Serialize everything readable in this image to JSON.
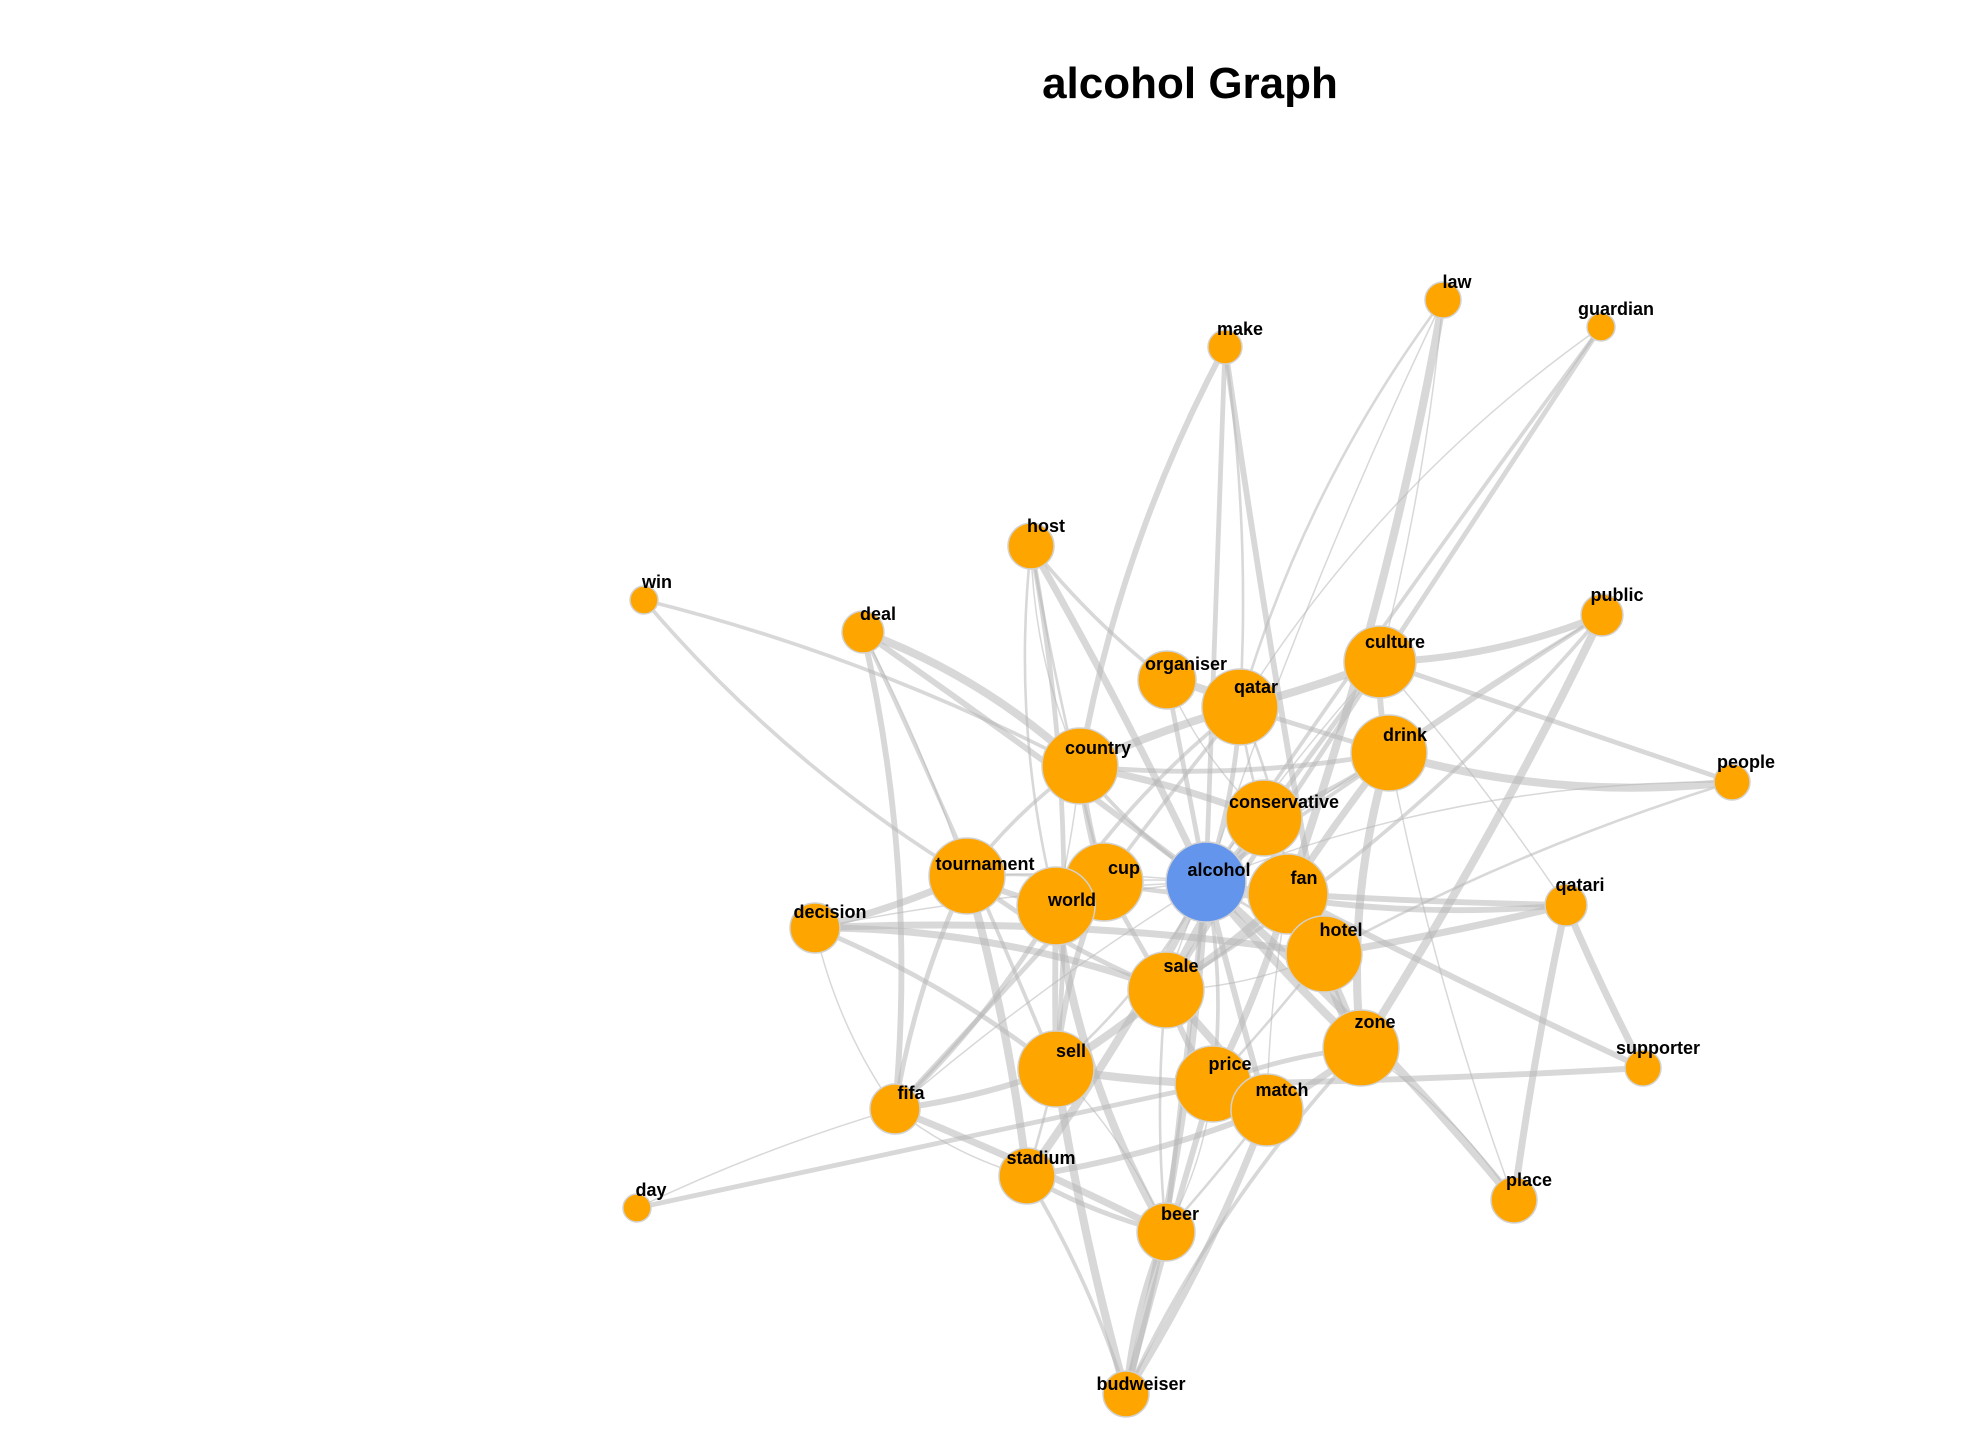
{
  "title": "alcohol Graph",
  "colors": {
    "background": "#ffffff",
    "center_node": "#6495ED",
    "node": "#FFA500",
    "node_stroke": "#D2D2D2",
    "edge": "#B8B8B8",
    "label": "#000000"
  },
  "graph": {
    "center": "alcohol",
    "nodes": [
      {
        "id": "alcohol",
        "label": "alcohol"
      },
      {
        "id": "cup",
        "label": "cup"
      },
      {
        "id": "world",
        "label": "world"
      },
      {
        "id": "tournament",
        "label": "tournament"
      },
      {
        "id": "country",
        "label": "country"
      },
      {
        "id": "organiser",
        "label": "organiser"
      },
      {
        "id": "qatar",
        "label": "qatar"
      },
      {
        "id": "culture",
        "label": "culture"
      },
      {
        "id": "drink",
        "label": "drink"
      },
      {
        "id": "conservative",
        "label": "conservative"
      },
      {
        "id": "fan",
        "label": "fan"
      },
      {
        "id": "hotel",
        "label": "hotel"
      },
      {
        "id": "sale",
        "label": "sale"
      },
      {
        "id": "zone",
        "label": "zone"
      },
      {
        "id": "sell",
        "label": "sell"
      },
      {
        "id": "price",
        "label": "price"
      },
      {
        "id": "match",
        "label": "match"
      },
      {
        "id": "stadium",
        "label": "stadium"
      },
      {
        "id": "beer",
        "label": "beer"
      },
      {
        "id": "fifa",
        "label": "fifa"
      },
      {
        "id": "decision",
        "label": "decision"
      },
      {
        "id": "deal",
        "label": "deal"
      },
      {
        "id": "host",
        "label": "host"
      },
      {
        "id": "win",
        "label": "win"
      },
      {
        "id": "make",
        "label": "make"
      },
      {
        "id": "law",
        "label": "law"
      },
      {
        "id": "guardian",
        "label": "guardian"
      },
      {
        "id": "public",
        "label": "public"
      },
      {
        "id": "people",
        "label": "people"
      },
      {
        "id": "qatari",
        "label": "qatari"
      },
      {
        "id": "supporter",
        "label": "supporter"
      },
      {
        "id": "place",
        "label": "place"
      },
      {
        "id": "day",
        "label": "day"
      },
      {
        "id": "budweiser",
        "label": "budweiser"
      }
    ],
    "edges": [
      [
        "alcohol",
        "cup"
      ],
      [
        "alcohol",
        "world"
      ],
      [
        "alcohol",
        "tournament"
      ],
      [
        "alcohol",
        "country"
      ],
      [
        "alcohol",
        "organiser"
      ],
      [
        "alcohol",
        "qatar"
      ],
      [
        "alcohol",
        "culture"
      ],
      [
        "alcohol",
        "drink"
      ],
      [
        "alcohol",
        "conservative"
      ],
      [
        "alcohol",
        "fan"
      ],
      [
        "alcohol",
        "hotel"
      ],
      [
        "alcohol",
        "sale"
      ],
      [
        "alcohol",
        "zone"
      ],
      [
        "alcohol",
        "sell"
      ],
      [
        "alcohol",
        "price"
      ],
      [
        "alcohol",
        "match"
      ],
      [
        "alcohol",
        "stadium"
      ],
      [
        "alcohol",
        "beer"
      ],
      [
        "alcohol",
        "fifa"
      ],
      [
        "alcohol",
        "decision"
      ],
      [
        "alcohol",
        "deal"
      ],
      [
        "alcohol",
        "host"
      ],
      [
        "alcohol",
        "make"
      ],
      [
        "alcohol",
        "law"
      ],
      [
        "alcohol",
        "guardian"
      ],
      [
        "alcohol",
        "public"
      ],
      [
        "alcohol",
        "people"
      ],
      [
        "alcohol",
        "qatari"
      ],
      [
        "alcohol",
        "place"
      ],
      [
        "alcohol",
        "budweiser"
      ],
      [
        "cup",
        "world"
      ],
      [
        "cup",
        "tournament"
      ],
      [
        "cup",
        "country"
      ],
      [
        "cup",
        "qatar"
      ],
      [
        "cup",
        "fan"
      ],
      [
        "cup",
        "sale"
      ],
      [
        "cup",
        "sell"
      ],
      [
        "cup",
        "fifa"
      ],
      [
        "cup",
        "host"
      ],
      [
        "world",
        "tournament"
      ],
      [
        "world",
        "country"
      ],
      [
        "world",
        "fifa"
      ],
      [
        "world",
        "sell"
      ],
      [
        "world",
        "qatar"
      ],
      [
        "world",
        "host"
      ],
      [
        "world",
        "beer"
      ],
      [
        "tournament",
        "win"
      ],
      [
        "tournament",
        "decision"
      ],
      [
        "tournament",
        "country"
      ],
      [
        "tournament",
        "fifa"
      ],
      [
        "tournament",
        "stadium"
      ],
      [
        "tournament",
        "sale"
      ],
      [
        "tournament",
        "deal"
      ],
      [
        "country",
        "host"
      ],
      [
        "country",
        "conservative"
      ],
      [
        "country",
        "qatar"
      ],
      [
        "country",
        "win"
      ],
      [
        "country",
        "drink"
      ],
      [
        "country",
        "deal"
      ],
      [
        "qatar",
        "organiser"
      ],
      [
        "qatar",
        "law"
      ],
      [
        "qatar",
        "guardian"
      ],
      [
        "qatar",
        "culture"
      ],
      [
        "qatar",
        "drink"
      ],
      [
        "qatar",
        "conservative"
      ],
      [
        "qatar",
        "fan"
      ],
      [
        "qatar",
        "make"
      ],
      [
        "culture",
        "drink"
      ],
      [
        "culture",
        "law"
      ],
      [
        "culture",
        "people"
      ],
      [
        "culture",
        "public"
      ],
      [
        "culture",
        "conservative"
      ],
      [
        "culture",
        "qatari"
      ],
      [
        "drink",
        "people"
      ],
      [
        "drink",
        "public"
      ],
      [
        "drink",
        "place"
      ],
      [
        "drink",
        "fan"
      ],
      [
        "drink",
        "conservative"
      ],
      [
        "drink",
        "zone"
      ],
      [
        "conservative",
        "fan"
      ],
      [
        "conservative",
        "sale"
      ],
      [
        "conservative",
        "organiser"
      ],
      [
        "fan",
        "hotel"
      ],
      [
        "fan",
        "zone"
      ],
      [
        "fan",
        "match"
      ],
      [
        "fan",
        "qatari"
      ],
      [
        "fan",
        "supporter"
      ],
      [
        "fan",
        "sale"
      ],
      [
        "fan",
        "price"
      ],
      [
        "hotel",
        "zone"
      ],
      [
        "hotel",
        "sale"
      ],
      [
        "hotel",
        "qatari"
      ],
      [
        "hotel",
        "price"
      ],
      [
        "sale",
        "sell"
      ],
      [
        "sale",
        "price"
      ],
      [
        "sale",
        "beer"
      ],
      [
        "sale",
        "decision"
      ],
      [
        "sale",
        "match"
      ],
      [
        "zone",
        "place"
      ],
      [
        "zone",
        "match"
      ],
      [
        "zone",
        "price"
      ],
      [
        "zone",
        "public"
      ],
      [
        "sell",
        "beer"
      ],
      [
        "sell",
        "stadium"
      ],
      [
        "sell",
        "fifa"
      ],
      [
        "sell",
        "budweiser"
      ],
      [
        "sell",
        "price"
      ],
      [
        "sell",
        "decision"
      ],
      [
        "price",
        "match"
      ],
      [
        "price",
        "beer"
      ],
      [
        "price",
        "budweiser"
      ],
      [
        "price",
        "supporter"
      ],
      [
        "match",
        "stadium"
      ],
      [
        "match",
        "beer"
      ],
      [
        "match",
        "budweiser"
      ],
      [
        "stadium",
        "fifa"
      ],
      [
        "stadium",
        "beer"
      ],
      [
        "beer",
        "budweiser"
      ],
      [
        "beer",
        "fifa"
      ],
      [
        "fifa",
        "day"
      ],
      [
        "fifa",
        "decision"
      ],
      [
        "fifa",
        "deal"
      ],
      [
        "day",
        "price"
      ],
      [
        "decision",
        "hotel"
      ],
      [
        "deal",
        "sell"
      ],
      [
        "host",
        "sell"
      ],
      [
        "host",
        "organiser"
      ],
      [
        "make",
        "hotel"
      ],
      [
        "make",
        "country"
      ],
      [
        "law",
        "fan"
      ],
      [
        "guardian",
        "sale"
      ],
      [
        "public",
        "sale"
      ],
      [
        "people",
        "hotel"
      ],
      [
        "qatari",
        "supporter"
      ],
      [
        "qatari",
        "place"
      ],
      [
        "budweiser",
        "stadium"
      ],
      [
        "budweiser",
        "zone"
      ]
    ]
  }
}
